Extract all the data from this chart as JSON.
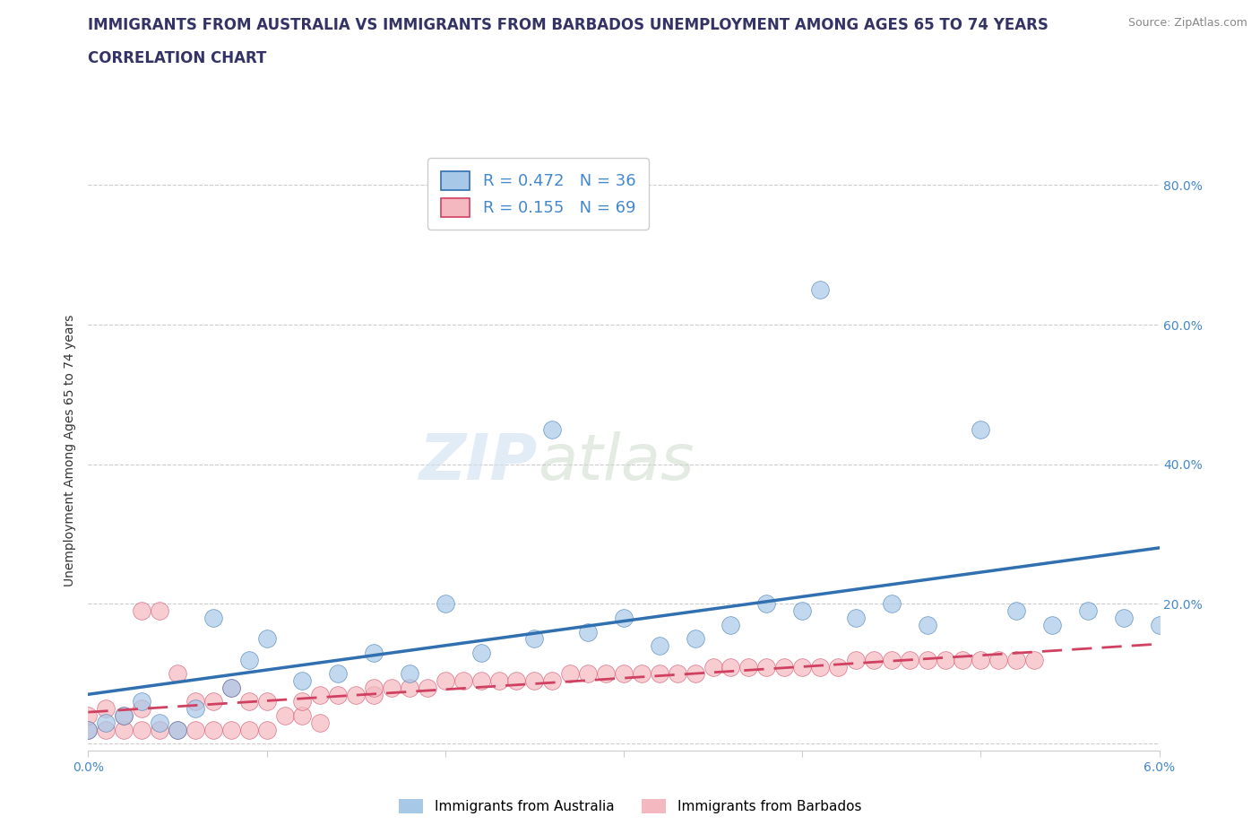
{
  "title_line1": "IMMIGRANTS FROM AUSTRALIA VS IMMIGRANTS FROM BARBADOS UNEMPLOYMENT AMONG AGES 65 TO 74 YEARS",
  "title_line2": "CORRELATION CHART",
  "source_text": "Source: ZipAtlas.com",
  "ylabel": "Unemployment Among Ages 65 to 74 years",
  "xlim": [
    0.0,
    0.06
  ],
  "ylim": [
    -0.01,
    0.85
  ],
  "ytick_positions": [
    0.0,
    0.2,
    0.4,
    0.6,
    0.8
  ],
  "ytick_labels": [
    "",
    "20.0%",
    "40.0%",
    "60.0%",
    "80.0%"
  ],
  "australia_color": "#a8c8e8",
  "barbados_color": "#f4b8c0",
  "trendline_australia_color": "#3070b0",
  "trendline_barbados_color": "#d04060",
  "R_australia": 0.472,
  "N_australia": 36,
  "R_barbados": 0.155,
  "N_barbados": 69,
  "australia_x": [
    0.0,
    0.001,
    0.002,
    0.003,
    0.004,
    0.005,
    0.006,
    0.007,
    0.008,
    0.009,
    0.01,
    0.012,
    0.014,
    0.016,
    0.018,
    0.02,
    0.022,
    0.025,
    0.026,
    0.028,
    0.03,
    0.032,
    0.034,
    0.036,
    0.038,
    0.04,
    0.041,
    0.043,
    0.045,
    0.047,
    0.05,
    0.052,
    0.054,
    0.056,
    0.058,
    0.06
  ],
  "australia_y": [
    0.02,
    0.03,
    0.04,
    0.06,
    0.03,
    0.02,
    0.05,
    0.18,
    0.08,
    0.12,
    0.15,
    0.09,
    0.1,
    0.13,
    0.1,
    0.2,
    0.13,
    0.15,
    0.45,
    0.16,
    0.18,
    0.14,
    0.15,
    0.17,
    0.2,
    0.19,
    0.65,
    0.18,
    0.2,
    0.17,
    0.45,
    0.19,
    0.17,
    0.19,
    0.18,
    0.17
  ],
  "barbados_x": [
    0.0,
    0.0,
    0.001,
    0.001,
    0.002,
    0.002,
    0.003,
    0.003,
    0.003,
    0.004,
    0.004,
    0.005,
    0.005,
    0.006,
    0.006,
    0.007,
    0.007,
    0.008,
    0.008,
    0.009,
    0.009,
    0.01,
    0.01,
    0.011,
    0.012,
    0.012,
    0.013,
    0.013,
    0.014,
    0.015,
    0.016,
    0.016,
    0.017,
    0.018,
    0.019,
    0.02,
    0.021,
    0.022,
    0.023,
    0.024,
    0.025,
    0.026,
    0.027,
    0.028,
    0.029,
    0.03,
    0.031,
    0.032,
    0.033,
    0.034,
    0.035,
    0.036,
    0.037,
    0.038,
    0.039,
    0.04,
    0.041,
    0.042,
    0.043,
    0.044,
    0.045,
    0.046,
    0.047,
    0.048,
    0.049,
    0.05,
    0.051,
    0.052,
    0.053
  ],
  "barbados_y": [
    0.02,
    0.04,
    0.02,
    0.05,
    0.02,
    0.04,
    0.02,
    0.05,
    0.19,
    0.02,
    0.19,
    0.02,
    0.1,
    0.02,
    0.06,
    0.02,
    0.06,
    0.02,
    0.08,
    0.02,
    0.06,
    0.02,
    0.06,
    0.04,
    0.04,
    0.06,
    0.03,
    0.07,
    0.07,
    0.07,
    0.07,
    0.08,
    0.08,
    0.08,
    0.08,
    0.09,
    0.09,
    0.09,
    0.09,
    0.09,
    0.09,
    0.09,
    0.1,
    0.1,
    0.1,
    0.1,
    0.1,
    0.1,
    0.1,
    0.1,
    0.11,
    0.11,
    0.11,
    0.11,
    0.11,
    0.11,
    0.11,
    0.11,
    0.12,
    0.12,
    0.12,
    0.12,
    0.12,
    0.12,
    0.12,
    0.12,
    0.12,
    0.12,
    0.12
  ],
  "watermark_text1": "ZIP",
  "watermark_text2": "atlas",
  "title_fontsize": 12,
  "label_fontsize": 10,
  "tick_fontsize": 10,
  "legend_fontsize": 13
}
